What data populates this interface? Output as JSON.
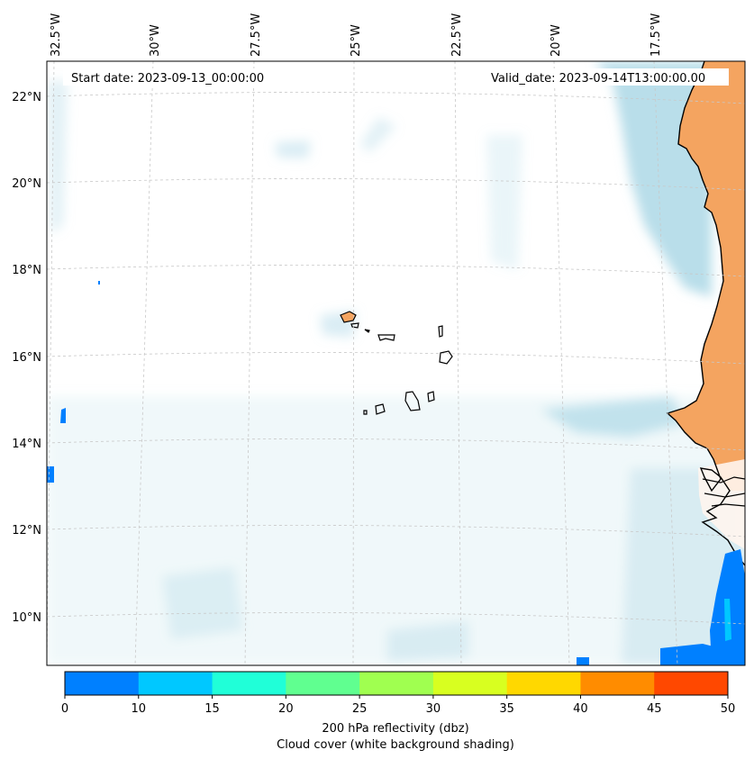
{
  "map": {
    "start_date_label": "Start date: 2023-09-13_00:00:00",
    "valid_date_label": "Valid_date: 2023-09-14T13:00:00.00",
    "lon_labels": [
      "32.5°W",
      "30°W",
      "27.5°W",
      "25°W",
      "22.5°W",
      "20°W",
      "17.5°W"
    ],
    "lat_labels": [
      "22°N",
      "20°N",
      "18°N",
      "16°N",
      "14°N",
      "12°N",
      "10°N"
    ],
    "land_color": "#f4a460",
    "cloud_color": "#add8e6",
    "coast_color": "#000000"
  },
  "colorbar": {
    "ticks": [
      "0",
      "10",
      "15",
      "20",
      "25",
      "30",
      "35",
      "40",
      "45",
      "50"
    ],
    "colors": [
      "#0080ff",
      "#00c8ff",
      "#20ffd8",
      "#60ff90",
      "#a0ff50",
      "#d8ff20",
      "#ffd800",
      "#ff8c00",
      "#ff4800"
    ],
    "label_line1": "200 hPa reflectivity (dbz)",
    "label_line2": "Cloud cover (white background shading)"
  }
}
